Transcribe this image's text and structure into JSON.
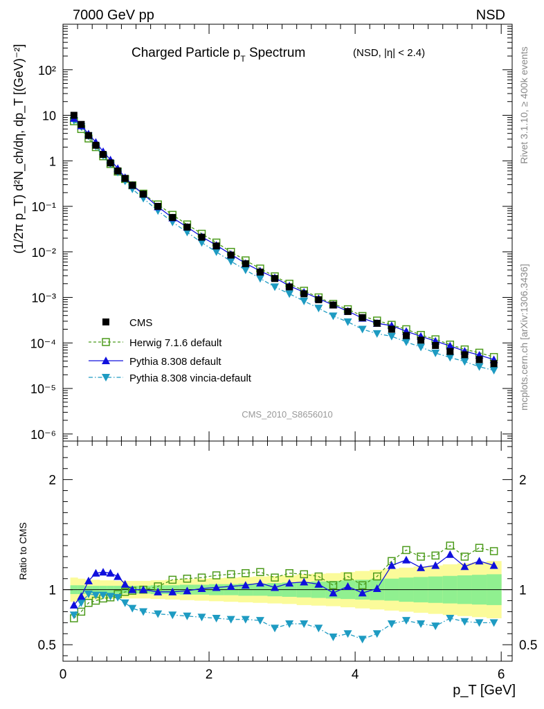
{
  "header": {
    "left": "7000 GeV pp",
    "right": "NSD"
  },
  "title": {
    "main": "Charged Particle p",
    "sub": "T",
    "main2": " Spectrum",
    "small": "(NSD, |η| < 2.4)"
  },
  "ylabel_main": "(1/2π p_T) d²N_ch/dη, dp_T [(GeV)⁻²]",
  "ylabel_ratio": "Ratio to CMS",
  "xlabel": "p_T [GeV]",
  "side_labels": {
    "rivet": "Rivet 3.1.10, ≥ 400k events",
    "mcplots": "mcplots.cern.ch [arXiv:1306.3436]"
  },
  "analysis_id": "CMS_2010_S8656010",
  "legend": [
    {
      "label": "CMS",
      "key": "cms"
    },
    {
      "label": "Herwig 7.1.6 default",
      "key": "herwig"
    },
    {
      "label": "Pythia 8.308 default",
      "key": "pythia"
    },
    {
      "label": "Pythia 8.308 vincia-default",
      "key": "vincia"
    }
  ],
  "colors": {
    "cms": "#000000",
    "herwig": "#4b9a1a",
    "pythia": "#1010dd",
    "vincia": "#1e9bc2",
    "band_inner": "#90f090",
    "band_outer": "#fbfb9a"
  },
  "chart_data": [
    {
      "type": "scatter",
      "name": "main",
      "xlabel": "p_T [GeV]",
      "ylabel": "(1/2π p_T) d²N_ch/dη, dp_T [(GeV)⁻²]",
      "xlim": [
        0,
        6.15
      ],
      "ylim": [
        7e-07,
        1000
      ],
      "yscale": "log",
      "ytick_labels": [
        "10⁻⁶",
        "10⁻⁵",
        "10⁻⁴",
        "10⁻³",
        "10⁻²",
        "10⁻¹",
        "1",
        "10",
        "10²"
      ],
      "x": [
        0.15,
        0.25,
        0.35,
        0.45,
        0.55,
        0.65,
        0.75,
        0.85,
        0.95,
        1.1,
        1.3,
        1.5,
        1.7,
        1.9,
        2.1,
        2.3,
        2.5,
        2.7,
        2.9,
        3.1,
        3.3,
        3.5,
        3.7,
        3.9,
        4.1,
        4.3,
        4.5,
        4.7,
        4.9,
        5.1,
        5.3,
        5.5,
        5.7,
        5.9
      ],
      "series": [
        {
          "name": "CMS",
          "key": "cms",
          "values": [
            10.0,
            6.3,
            3.6,
            2.2,
            1.38,
            0.9,
            0.6,
            0.41,
            0.29,
            0.185,
            0.1,
            0.057,
            0.035,
            0.021,
            0.0135,
            0.0085,
            0.0055,
            0.0036,
            0.0026,
            0.0017,
            0.0012,
            0.00089,
            0.00068,
            0.00049,
            0.00036,
            0.00027,
            0.0002,
            0.000145,
            0.000115,
            8.8e-05,
            6.5e-05,
            5.5e-05,
            4.3e-05,
            3.5e-05
          ]
        },
        {
          "name": "Herwig 7.1.6 default",
          "key": "herwig",
          "values": [
            7.4,
            5.0,
            3.1,
            2.0,
            1.26,
            0.85,
            0.58,
            0.4,
            0.29,
            0.19,
            0.11,
            0.065,
            0.04,
            0.025,
            0.016,
            0.01,
            0.0065,
            0.0043,
            0.0029,
            0.002,
            0.0014,
            0.001,
            0.00072,
            0.00055,
            0.00039,
            0.00031,
            0.00025,
            0.0002,
            0.00015,
            0.00012,
            9.2e-05,
            7.2e-05,
            6.1e-05,
            4.9e-05
          ]
        },
        {
          "name": "Pythia 8.308 default",
          "key": "pythia",
          "values": [
            8.6,
            5.9,
            3.9,
            2.55,
            1.6,
            1.05,
            0.68,
            0.43,
            0.29,
            0.185,
            0.098,
            0.056,
            0.035,
            0.0215,
            0.014,
            0.0088,
            0.0056,
            0.0038,
            0.0027,
            0.0018,
            0.0013,
            0.00094,
            0.00068,
            0.0005,
            0.00035,
            0.00027,
            0.00024,
            0.00018,
            0.00014,
            0.00011,
            8.6e-05,
            6.6e-05,
            5.4e-05,
            4.3e-05
          ]
        },
        {
          "name": "Pythia 8.308 vincia-default",
          "key": "vincia",
          "values": [
            7.7,
            5.6,
            3.5,
            2.1,
            1.3,
            0.85,
            0.56,
            0.36,
            0.24,
            0.15,
            0.08,
            0.045,
            0.027,
            0.016,
            0.01,
            0.0062,
            0.004,
            0.0026,
            0.0017,
            0.0012,
            0.00083,
            0.00058,
            0.00039,
            0.00029,
            0.0002,
            0.00016,
            0.00014,
            0.000105,
            8.1e-05,
            6e-05,
            4.8e-05,
            3.9e-05,
            3e-05,
            2.5e-05
          ]
        }
      ]
    },
    {
      "type": "line",
      "name": "ratio",
      "xlabel": "p_T [GeV]",
      "ylabel": "Ratio to CMS",
      "xlim": [
        0,
        6.15
      ],
      "ylim": [
        0.35,
        2.35
      ],
      "xticks": [
        0,
        2,
        4,
        6
      ],
      "yticks": [
        0.5,
        1,
        2
      ],
      "x": [
        0.15,
        0.25,
        0.35,
        0.45,
        0.55,
        0.65,
        0.75,
        0.85,
        0.95,
        1.1,
        1.3,
        1.5,
        1.7,
        1.9,
        2.1,
        2.3,
        2.5,
        2.7,
        2.9,
        3.1,
        3.3,
        3.5,
        3.7,
        3.9,
        4.1,
        4.3,
        4.5,
        4.7,
        4.9,
        5.1,
        5.3,
        5.5,
        5.7,
        5.9
      ],
      "series": [
        {
          "name": "Herwig 7.1.6 default",
          "key": "herwig",
          "values": [
            0.74,
            0.8,
            0.88,
            0.9,
            0.92,
            0.93,
            0.96,
            0.98,
            0.99,
            1.0,
            1.03,
            1.09,
            1.1,
            1.11,
            1.13,
            1.14,
            1.15,
            1.16,
            1.11,
            1.15,
            1.14,
            1.12,
            1.04,
            1.12,
            1.04,
            1.12,
            1.26,
            1.36,
            1.3,
            1.31,
            1.4,
            1.3,
            1.38,
            1.35
          ]
        },
        {
          "name": "Pythia 8.308 default",
          "key": "pythia",
          "values": [
            0.86,
            0.94,
            1.08,
            1.15,
            1.16,
            1.15,
            1.12,
            1.05,
            1.0,
            1.0,
            0.98,
            0.98,
            0.99,
            1.01,
            1.02,
            1.03,
            1.04,
            1.06,
            1.02,
            1.06,
            1.07,
            1.05,
            0.97,
            1.03,
            0.97,
            1.01,
            1.22,
            1.27,
            1.2,
            1.22,
            1.32,
            1.21,
            1.26,
            1.22
          ]
        },
        {
          "name": "Pythia 8.308 vincia-default",
          "key": "vincia",
          "values": [
            0.77,
            0.88,
            0.96,
            0.95,
            0.95,
            0.94,
            0.93,
            0.88,
            0.83,
            0.8,
            0.78,
            0.77,
            0.76,
            0.75,
            0.74,
            0.73,
            0.73,
            0.72,
            0.65,
            0.69,
            0.69,
            0.65,
            0.57,
            0.6,
            0.55,
            0.6,
            0.69,
            0.72,
            0.69,
            0.67,
            0.74,
            0.71,
            0.7,
            0.7
          ]
        }
      ],
      "band_inner": [
        0.96,
        0.96,
        0.965,
        0.965,
        0.965,
        0.965,
        0.965,
        0.965,
        0.965,
        0.965,
        0.96,
        0.96,
        0.955,
        0.955,
        0.95,
        0.95,
        0.945,
        0.945,
        0.94,
        0.935,
        0.93,
        0.925,
        0.92,
        0.915,
        0.91,
        0.905,
        0.9,
        0.89,
        0.885,
        0.88,
        0.875,
        0.87,
        0.865,
        0.86
      ],
      "band_outer": [
        0.89,
        0.9,
        0.91,
        0.91,
        0.915,
        0.915,
        0.92,
        0.92,
        0.92,
        0.92,
        0.915,
        0.91,
        0.905,
        0.9,
        0.895,
        0.89,
        0.885,
        0.88,
        0.875,
        0.87,
        0.86,
        0.855,
        0.85,
        0.84,
        0.83,
        0.82,
        0.81,
        0.8,
        0.79,
        0.78,
        0.77,
        0.76,
        0.75,
        0.74
      ]
    }
  ]
}
